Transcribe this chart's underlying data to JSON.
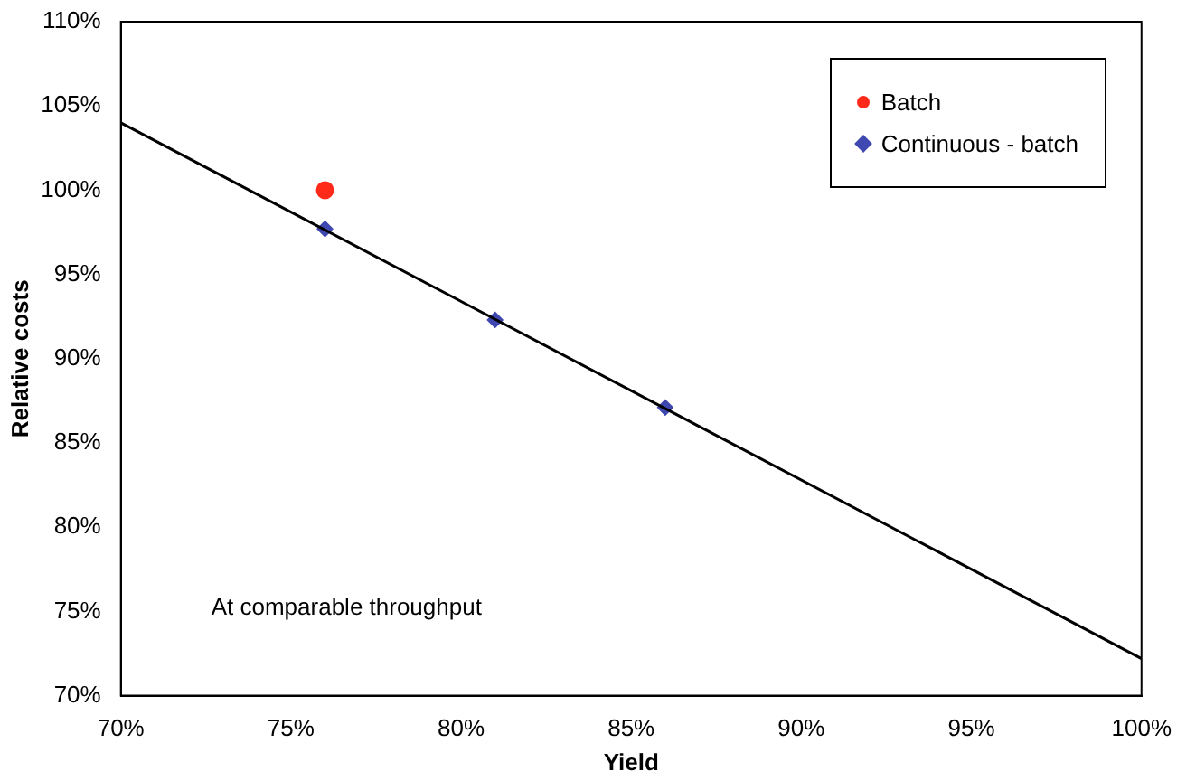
{
  "chart_data": {
    "type": "scatter",
    "xlabel": "Yield",
    "ylabel": "Relative costs",
    "annotations": [
      "At comparable throughput"
    ],
    "xlim": [
      70,
      100
    ],
    "ylim": [
      70,
      110
    ],
    "xticks": [
      {
        "value": 70,
        "label": "70%"
      },
      {
        "value": 75,
        "label": "75%"
      },
      {
        "value": 80,
        "label": "80%"
      },
      {
        "value": 85,
        "label": "85%"
      },
      {
        "value": 90,
        "label": "90%"
      },
      {
        "value": 95,
        "label": "95%"
      },
      {
        "value": 100,
        "label": "100%"
      }
    ],
    "yticks": [
      {
        "value": 70,
        "label": "70%"
      },
      {
        "value": 75,
        "label": "75%"
      },
      {
        "value": 80,
        "label": "80%"
      },
      {
        "value": 85,
        "label": "85%"
      },
      {
        "value": 90,
        "label": "90%"
      },
      {
        "value": 95,
        "label": "95%"
      },
      {
        "value": 100,
        "label": "100%"
      },
      {
        "value": 105,
        "label": "105%"
      },
      {
        "value": 110,
        "label": "110%"
      }
    ],
    "grid": false,
    "legend": "top right",
    "series": [
      {
        "type": "line",
        "color": "#000000",
        "x": [
          70,
          100
        ],
        "values": [
          104,
          72.2
        ],
        "marker": "none"
      },
      {
        "name": "Batch",
        "color": "#ff2a1a",
        "x": [
          76
        ],
        "values": [
          100
        ],
        "marker": "circle"
      },
      {
        "name": "Continuous - batch",
        "color": "#3f48b0",
        "x": [
          76,
          81,
          86
        ],
        "values": [
          97.7,
          92.3,
          87.1
        ],
        "marker": "diamond"
      }
    ]
  }
}
